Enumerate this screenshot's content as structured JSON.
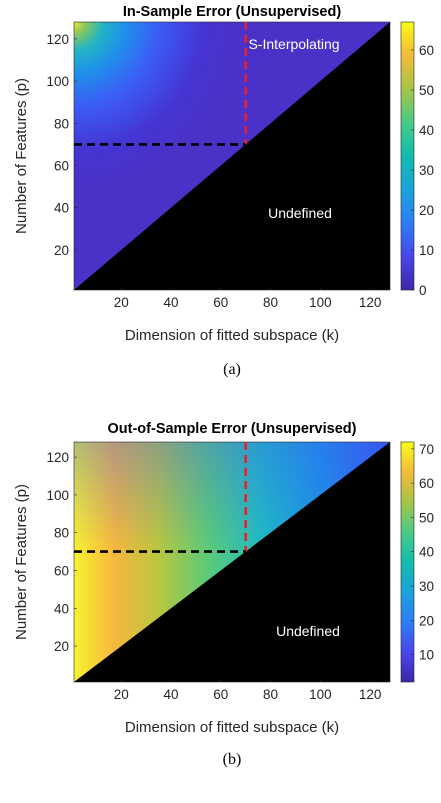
{
  "chart_data": [
    {
      "type": "heatmap",
      "title": "In-Sample Error (Unsupervised)",
      "xlabel": "Dimension of fitted subspace (k)",
      "ylabel": "Number of Features (p)",
      "xlim": [
        1,
        128
      ],
      "ylim": [
        1,
        128
      ],
      "xticks": [
        "20",
        "40",
        "60",
        "80",
        "100",
        "120"
      ],
      "yticks": [
        "20",
        "40",
        "60",
        "80",
        "100",
        "120"
      ],
      "colorbar": {
        "min": 0,
        "max": 67,
        "ticks": [
          "0",
          "10",
          "20",
          "30",
          "40",
          "50",
          "60"
        ]
      },
      "colormap": "parula",
      "undefined_region": "k > p",
      "undefined_color": "#000000",
      "annotations": [
        {
          "text": "S-Interpolating"
        },
        {
          "text": "Undefined"
        }
      ],
      "reference_lines": [
        {
          "orientation": "vertical",
          "k": 70,
          "p_from": 70,
          "p_to": 128,
          "color": "#e8202a"
        },
        {
          "orientation": "horizontal",
          "p": 70,
          "k_from": 1,
          "k_to": 70,
          "color": "#000000"
        }
      ],
      "caption": "(a)"
    },
    {
      "type": "heatmap",
      "title": "Out-of-Sample Error (Unsupervised)",
      "xlabel": "Dimension of fitted subspace (k)",
      "ylabel": "Number of Features (p)",
      "xlim": [
        1,
        128
      ],
      "ylim": [
        1,
        128
      ],
      "xticks": [
        "20",
        "40",
        "60",
        "80",
        "100",
        "120"
      ],
      "yticks": [
        "20",
        "40",
        "60",
        "80",
        "100",
        "120"
      ],
      "colorbar": {
        "min": 2,
        "max": 72,
        "ticks": [
          "10",
          "20",
          "30",
          "40",
          "50",
          "60",
          "70"
        ]
      },
      "colormap": "parula",
      "undefined_region": "k > p",
      "undefined_color": "#000000",
      "annotations": [
        {
          "text": "Undefined"
        }
      ],
      "reference_lines": [
        {
          "orientation": "vertical",
          "k": 70,
          "p_from": 70,
          "p_to": 128,
          "color": "#e8202a"
        },
        {
          "orientation": "horizontal",
          "p": 70,
          "k_from": 1,
          "k_to": 70,
          "color": "#000000"
        }
      ],
      "caption": "(b)"
    }
  ]
}
